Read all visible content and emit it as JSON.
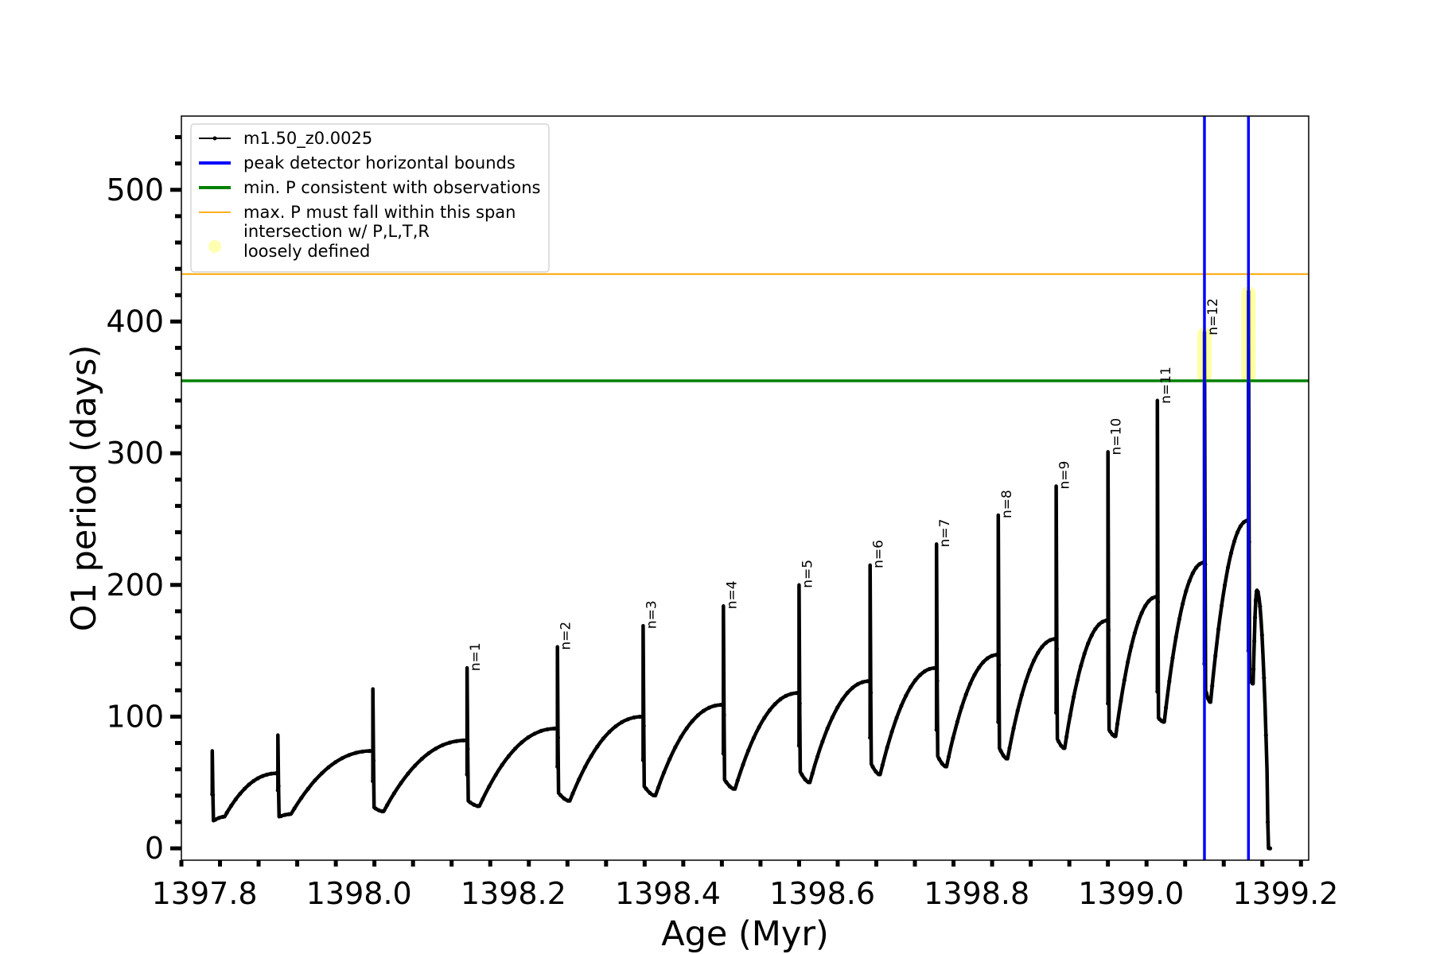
{
  "chart_data": {
    "type": "line",
    "title": "",
    "xlabel": "Age (Myr)",
    "ylabel": "O1 period (days)",
    "xlim": [
      1397.77,
      1399.23
    ],
    "ylim": [
      -9,
      556
    ],
    "x_ticks": [
      1397.8,
      1398.0,
      1398.2,
      1398.4,
      1398.6,
      1398.8,
      1399.0,
      1399.2
    ],
    "x_tick_labels": [
      "1397.8",
      "1398.0",
      "1398.2",
      "1398.4",
      "1398.6",
      "1398.8",
      "1399.0",
      "1399.2"
    ],
    "y_ticks": [
      0,
      100,
      200,
      300,
      400,
      500
    ],
    "y_tick_labels": [
      "0",
      "100",
      "200",
      "300",
      "400",
      "500"
    ],
    "x_minor_step": 0.05,
    "y_minor_step": 20,
    "grid": false,
    "legend_position": "upper-left",
    "legend": [
      {
        "label": "m1.50_z0.0025",
        "kind": "line-marker",
        "color": "#000000"
      },
      {
        "label": "peak detector horizontal bounds",
        "kind": "line",
        "color": "#0000ff"
      },
      {
        "label": "min. P consistent with observations",
        "kind": "line",
        "color": "#008000"
      },
      {
        "label": "max. P must fall within this span",
        "kind": "thin-line",
        "color": "#ffa500"
      },
      {
        "label": "intersection w/ P,L,T,R\nloosely defined",
        "kind": "dot",
        "color": "#ffff00"
      }
    ],
    "hlines": [
      {
        "name": "min. P consistent with observations",
        "y": 355,
        "color": "#008000"
      },
      {
        "name": "max. P must fall within this span",
        "y": 436,
        "color": "#ffa500"
      }
    ],
    "vlines": [
      {
        "name": "peak detector horizontal bounds",
        "x": 1399.095,
        "color": "#0000ff"
      },
      {
        "name": "peak detector horizontal bounds",
        "x": 1399.152,
        "color": "#0000ff"
      }
    ],
    "highlights": [
      {
        "x": 1399.095,
        "y_low": 357,
        "y_high": 392,
        "color": "#ffff00"
      },
      {
        "x": 1399.152,
        "y_low": 357,
        "y_high": 423,
        "color": "#ffff00"
      }
    ],
    "series": [
      {
        "name": "m1.50_z0.0025",
        "color": "#000000",
        "cycles": [
          {
            "t0": 1397.81,
            "peak": 74,
            "low": 21,
            "min_x": 1397.826,
            "min_y": 24,
            "t1": 1397.895,
            "end_y": 57
          },
          {
            "t0": 1397.895,
            "peak": 86,
            "low": 24,
            "min_x": 1397.912,
            "min_y": 26,
            "t1": 1398.018,
            "end_y": 74
          },
          {
            "t0": 1398.018,
            "peak": 121,
            "low": 31,
            "min_x": 1398.032,
            "min_y": 28,
            "t1": 1398.14,
            "end_y": 82
          },
          {
            "t0": 1398.14,
            "peak": 137,
            "low": 36,
            "min_x": 1398.156,
            "min_y": 32,
            "t1": 1398.257,
            "end_y": 91,
            "label": "n=1"
          },
          {
            "t0": 1398.257,
            "peak": 153,
            "low": 42,
            "min_x": 1398.273,
            "min_y": 36,
            "t1": 1398.368,
            "end_y": 100,
            "label": "n=2"
          },
          {
            "t0": 1398.368,
            "peak": 169,
            "low": 47,
            "min_x": 1398.384,
            "min_y": 40,
            "t1": 1398.472,
            "end_y": 109,
            "label": "n=3"
          },
          {
            "t0": 1398.472,
            "peak": 184,
            "low": 52,
            "min_x": 1398.487,
            "min_y": 45,
            "t1": 1398.57,
            "end_y": 118,
            "label": "n=4"
          },
          {
            "t0": 1398.57,
            "peak": 200,
            "low": 58,
            "min_x": 1398.584,
            "min_y": 50,
            "t1": 1398.662,
            "end_y": 127,
            "label": "n=5"
          },
          {
            "t0": 1398.662,
            "peak": 215,
            "low": 64,
            "min_x": 1398.675,
            "min_y": 56,
            "t1": 1398.748,
            "end_y": 137,
            "label": "n=6"
          },
          {
            "t0": 1398.748,
            "peak": 231,
            "low": 70,
            "min_x": 1398.761,
            "min_y": 62,
            "t1": 1398.828,
            "end_y": 147,
            "label": "n=7"
          },
          {
            "t0": 1398.828,
            "peak": 253,
            "low": 76,
            "min_x": 1398.84,
            "min_y": 68,
            "t1": 1398.903,
            "end_y": 159,
            "label": "n=8"
          },
          {
            "t0": 1398.903,
            "peak": 275,
            "low": 83,
            "min_x": 1398.914,
            "min_y": 76,
            "t1": 1398.97,
            "end_y": 173,
            "label": "n=9"
          },
          {
            "t0": 1398.97,
            "peak": 301,
            "low": 90,
            "min_x": 1398.98,
            "min_y": 85,
            "t1": 1399.034,
            "end_y": 191,
            "label": "n=10"
          },
          {
            "t0": 1399.034,
            "peak": 340,
            "low": 99,
            "min_x": 1399.043,
            "min_y": 96,
            "t1": 1399.095,
            "end_y": 217,
            "label": "n=11"
          },
          {
            "t0": 1399.095,
            "peak": 392,
            "low": 120,
            "min_x": 1399.103,
            "min_y": 111,
            "t1": 1399.152,
            "end_y": 249,
            "label": "n=12"
          },
          {
            "t0": 1399.152,
            "peak": 423,
            "low": 130,
            "min_x": 1399.158,
            "min_y": 125,
            "t1": 1399.178,
            "end_y": 0,
            "hump_x": 1399.163,
            "hump_y": 196
          }
        ]
      }
    ]
  }
}
